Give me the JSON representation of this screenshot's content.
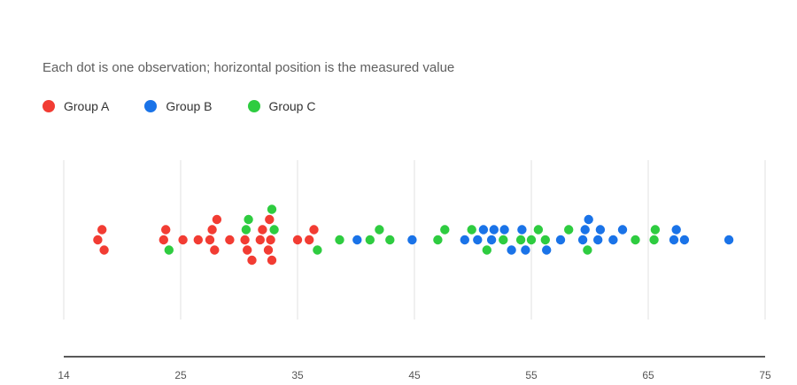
{
  "chart_data": {
    "type": "scatter",
    "subtitle": "Each dot is one observation; horizontal position is the measured value",
    "x_ticks": [
      14,
      25,
      35,
      45,
      55,
      65,
      75
    ],
    "xlim": [
      14,
      75
    ],
    "grid": true,
    "legend_position": "top-left",
    "series": [
      {
        "name": "Group A",
        "color": "#f23c33",
        "values": [
          17.2,
          17.6,
          17.8,
          23.4,
          23.6,
          25.2,
          26.5,
          27.5,
          27.7,
          27.9,
          28.1,
          29.2,
          30.5,
          30.7,
          31.1,
          31.8,
          32.0,
          32.5,
          32.6,
          32.7,
          32.8,
          35.0,
          36.0,
          36.4
        ]
      },
      {
        "name": "Group B",
        "color": "#1a73e8",
        "values": [
          40.1,
          44.8,
          49.3,
          50.4,
          50.9,
          51.6,
          51.8,
          52.7,
          53.3,
          54.2,
          54.5,
          56.3,
          57.5,
          59.4,
          59.6,
          59.9,
          60.7,
          60.9,
          62.0,
          62.8,
          67.2,
          67.4,
          68.1,
          71.9
        ]
      },
      {
        "name": "Group C",
        "color": "#2ecc40",
        "values": [
          23.9,
          30.6,
          30.8,
          32.8,
          33.0,
          36.7,
          38.6,
          41.2,
          42.0,
          42.9,
          47.0,
          47.6,
          49.9,
          51.2,
          52.6,
          54.1,
          55.0,
          55.6,
          56.2,
          58.2,
          59.8,
          63.9,
          65.5,
          65.6
        ]
      }
    ]
  }
}
